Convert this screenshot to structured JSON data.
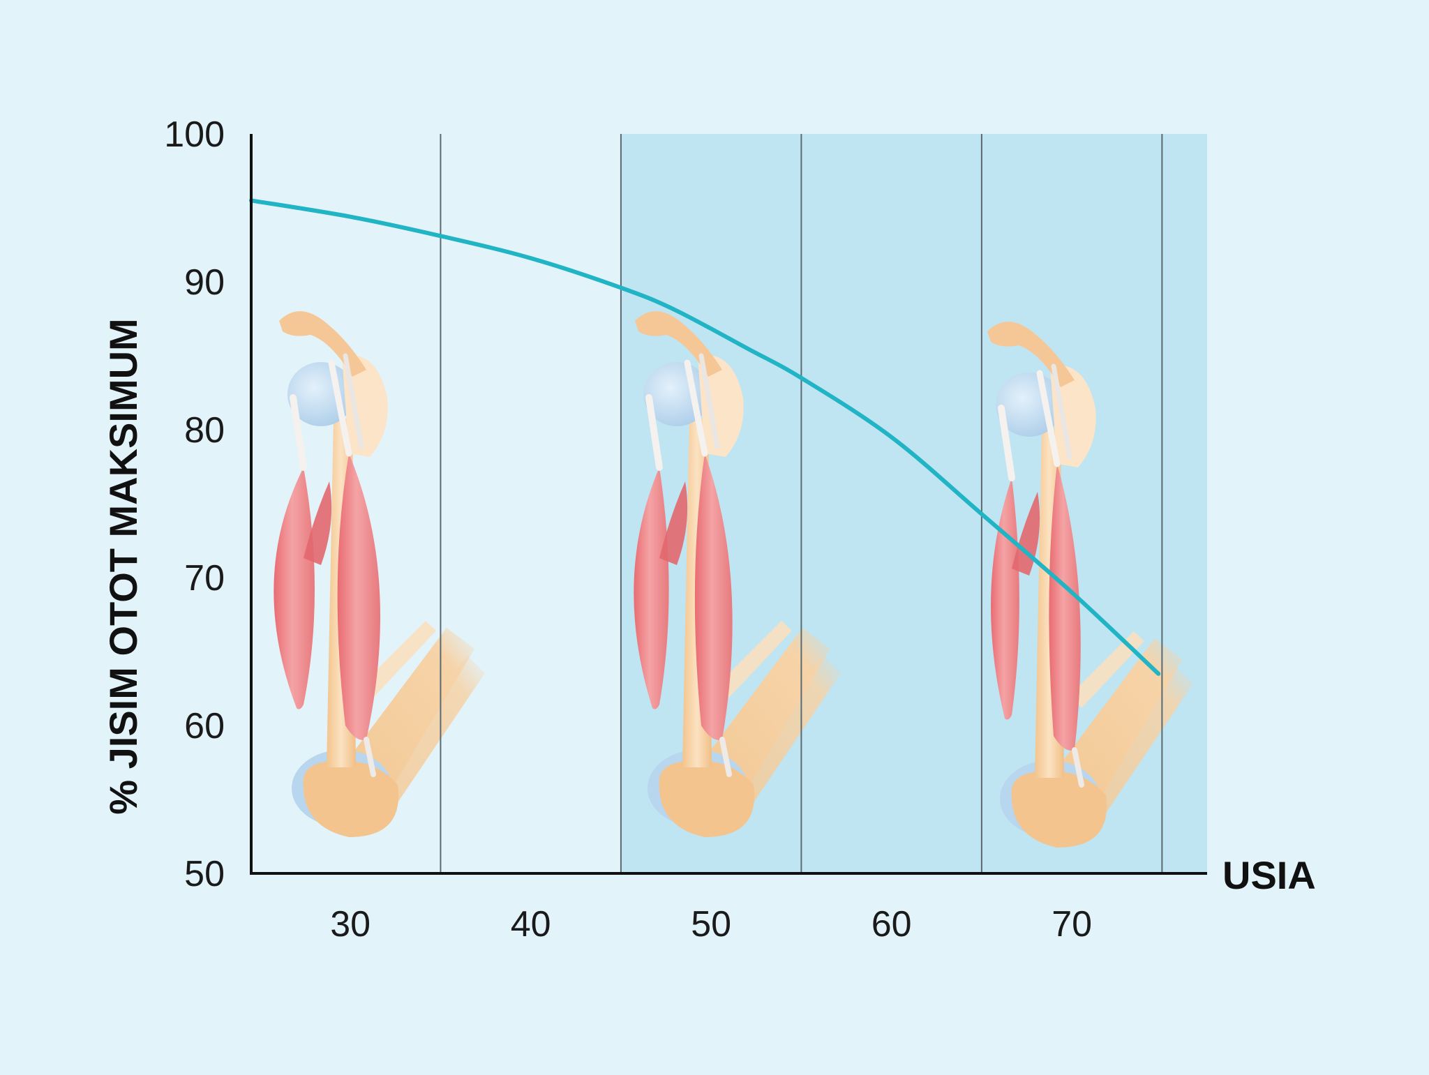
{
  "colors": {
    "background": "#e2f3fa",
    "band": "#bfe4f2",
    "line": "#20b4c4",
    "axis": "#111111",
    "grid": "#5a6a70",
    "muscle": "#ef8a8c",
    "bone": "#f7d2a4",
    "cartilage": "#b8d6ee"
  },
  "chart_data": {
    "type": "line",
    "xlabel": "USIA",
    "ylabel": "% JISIM OTOT MAKSIMUM",
    "xlim": [
      24.5,
      77.5
    ],
    "ylim": [
      50,
      100
    ],
    "x_ticks": [
      30,
      40,
      50,
      60,
      70
    ],
    "y_ticks": [
      50,
      60,
      70,
      80,
      90,
      100
    ],
    "x_gridlines": [
      35,
      45,
      55,
      65,
      75
    ],
    "shaded_ranges": [
      [
        45,
        77.5
      ]
    ],
    "grid": true,
    "series": [
      {
        "x": [
          24.5,
          30,
          35,
          40,
          45,
          48,
          52,
          55,
          60,
          65,
          70,
          74.8
        ],
        "values": [
          95.5,
          94.4,
          93.1,
          91.6,
          89.6,
          88.1,
          85.5,
          83.5,
          79.5,
          74.3,
          69.0,
          63.5
        ]
      }
    ],
    "illustrations": [
      {
        "name": "arm-muscle-illustration-1",
        "muscle_size": 1.0
      },
      {
        "name": "arm-muscle-illustration-2",
        "muscle_size": 0.85
      },
      {
        "name": "arm-muscle-illustration-3",
        "muscle_size": 0.68
      }
    ]
  }
}
